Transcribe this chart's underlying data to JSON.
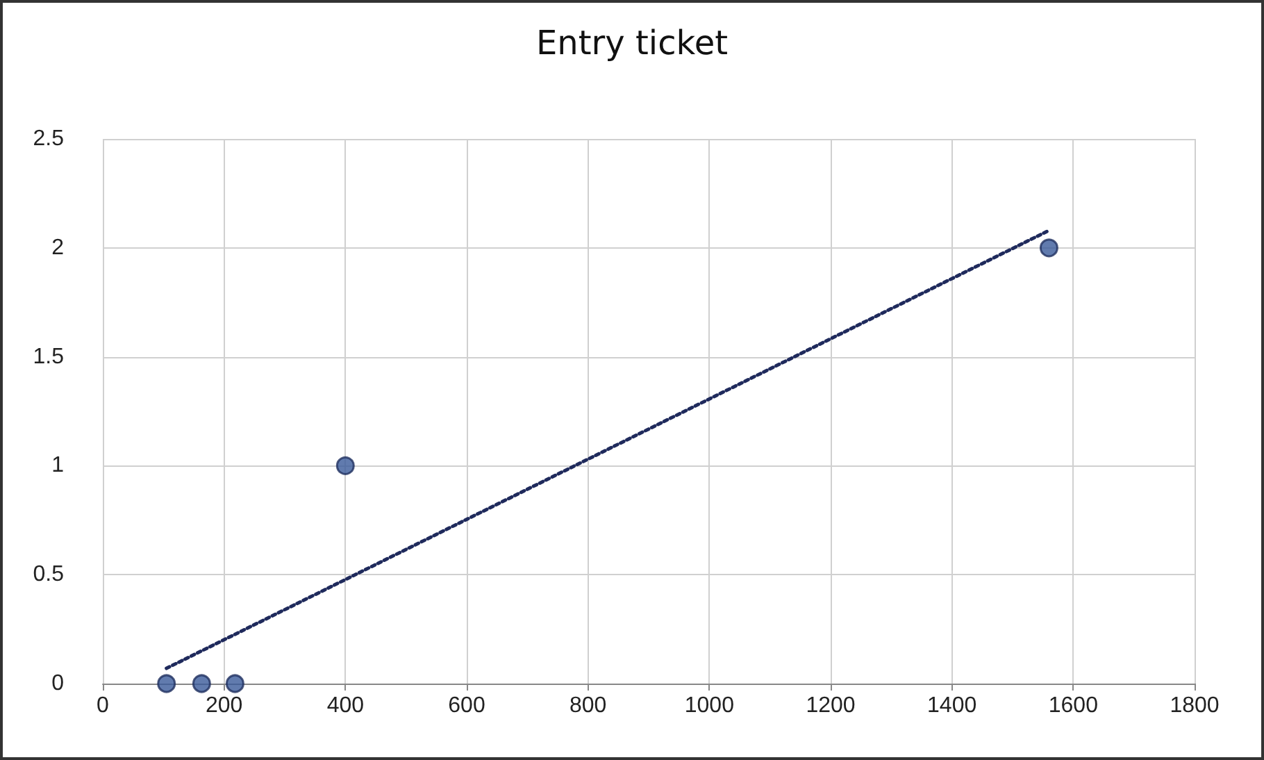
{
  "chart_data": {
    "type": "scatter",
    "title": "Entry ticket",
    "series": [
      {
        "color": "#3a5a9a",
        "x": [
          105,
          163,
          218,
          400,
          1560
        ],
        "values": [
          0,
          0,
          0,
          1,
          2
        ],
        "marker": "circle"
      },
      {
        "type": "line",
        "color": "#1f2a5c",
        "x": [
          105,
          1560
        ],
        "values": [
          0.07,
          2.08
        ],
        "line_style": "dotted",
        "marker": "none"
      }
    ],
    "xlim": [
      0,
      1800
    ],
    "xticks": [
      0,
      200,
      400,
      600,
      800,
      1000,
      1200,
      1400,
      1600,
      1800
    ],
    "ylim": [
      0,
      2.5
    ],
    "yticks": [
      0,
      0.5,
      1,
      1.5,
      2,
      2.5
    ],
    "grid": true
  }
}
